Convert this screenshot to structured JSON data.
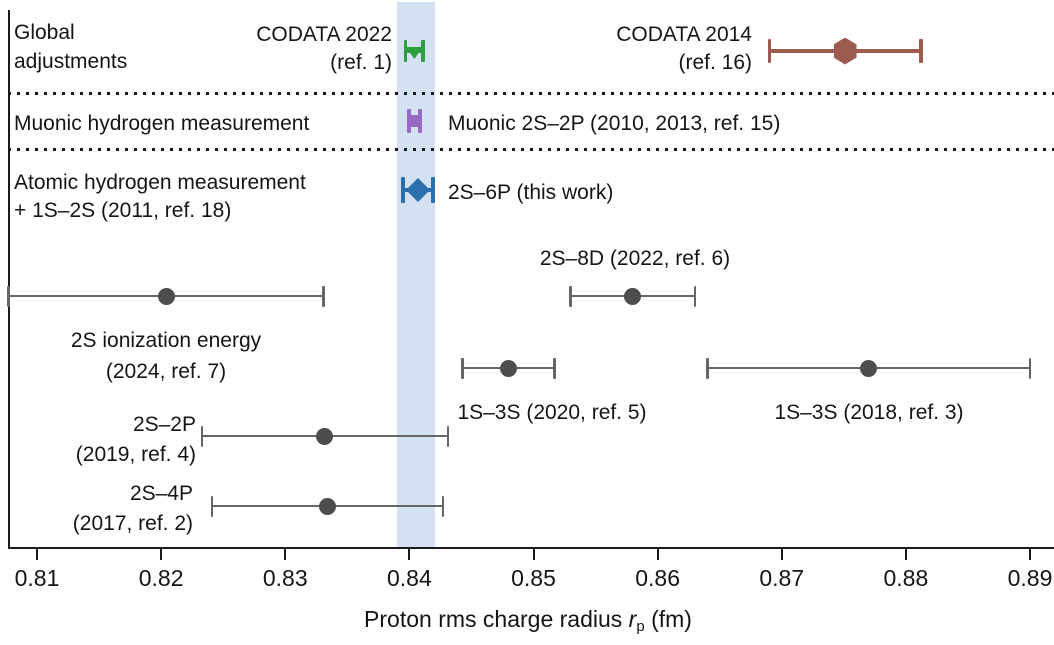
{
  "chart_data": {
    "type": "scatter",
    "subtype": "horizontal-errorbar-comparison",
    "xlabel": {
      "prefix": "Proton rms charge radius ",
      "symbol": "r",
      "subscript": "p",
      "suffix": " (fm)"
    },
    "xlim": [
      0.8077,
      0.8919
    ],
    "xticks": [
      {
        "value": 0.81,
        "label": "0.81"
      },
      {
        "value": 0.82,
        "label": "0.82"
      },
      {
        "value": 0.83,
        "label": "0.83"
      },
      {
        "value": 0.84,
        "label": "0.84"
      },
      {
        "value": 0.85,
        "label": "0.85"
      },
      {
        "value": 0.86,
        "label": "0.86"
      },
      {
        "value": 0.87,
        "label": "0.87"
      },
      {
        "value": 0.88,
        "label": "0.88"
      },
      {
        "value": 0.89,
        "label": "0.89"
      }
    ],
    "grid": false,
    "band": {
      "from": 0.839,
      "to": 0.8421,
      "color": "#d3e1f3"
    },
    "sections": [
      {
        "id": "global-adjustments",
        "label_lines": [
          "Global",
          "adjustments"
        ]
      },
      {
        "id": "muonic-hydrogen",
        "label_lines": [
          "Muonic hydrogen measurement"
        ]
      },
      {
        "id": "atomic-hydrogen",
        "label_lines": [
          "Atomic hydrogen measurement",
          "+ 1S–2S (2011, ref. 18)"
        ]
      }
    ],
    "points": [
      {
        "id": "codata-2022",
        "label_lines": [
          "CODATA 2022",
          "(ref. 1)"
        ],
        "value": 0.8404,
        "error": 0.0007,
        "color": "#2f9e3c",
        "marker": "triangle-down"
      },
      {
        "id": "codata-2014",
        "label_lines": [
          "CODATA 2014",
          "(ref. 16)"
        ],
        "value": 0.8751,
        "error": 0.0061,
        "color": "#9d5a4f",
        "marker": "hexagon"
      },
      {
        "id": "muonic-2s2p",
        "label_lines": [
          "Muonic 2S–2P (2010, 2013, ref. 15)"
        ],
        "value": 0.8404,
        "error": 0.00045,
        "color": "#9768c4",
        "marker": "square"
      },
      {
        "id": "2s6p-this-work",
        "label_lines": [
          "2S–6P (this work)"
        ],
        "value": 0.8407,
        "error": 0.0012,
        "color": "#2b6fad",
        "marker": "diamond"
      },
      {
        "id": "2s8d-2022",
        "label_lines": [
          "2S–8D (2022, ref. 6)"
        ],
        "value": 0.858,
        "error": 0.005,
        "color": "#4d4d4d",
        "marker": "circle"
      },
      {
        "id": "2s-ionization-2024",
        "label_lines": [
          "2S ionization energy",
          "(2024, ref. 7)"
        ],
        "value": 0.8204,
        "error": 0.0127,
        "color": "#4d4d4d",
        "marker": "circle"
      },
      {
        "id": "1s3s-2020",
        "label_lines": [
          "1S–3S (2020, ref. 5)"
        ],
        "value": 0.848,
        "error": 0.0037,
        "color": "#4d4d4d",
        "marker": "circle"
      },
      {
        "id": "1s3s-2018",
        "label_lines": [
          "1S–3S (2018, ref. 3)"
        ],
        "value": 0.877,
        "error": 0.013,
        "color": "#4d4d4d",
        "marker": "circle"
      },
      {
        "id": "2s2p-2019",
        "label_lines": [
          "2S–2P",
          "(2019, ref. 4)"
        ],
        "value": 0.8332,
        "error": 0.0099,
        "color": "#4d4d4d",
        "marker": "circle"
      },
      {
        "id": "2s4p-2017",
        "label_lines": [
          "2S–4P",
          "(2017, ref. 2)"
        ],
        "value": 0.8334,
        "error": 0.0093,
        "color": "#4d4d4d",
        "marker": "circle"
      }
    ],
    "errorbar_color_gray": "#666666",
    "text_color": "#151515"
  }
}
